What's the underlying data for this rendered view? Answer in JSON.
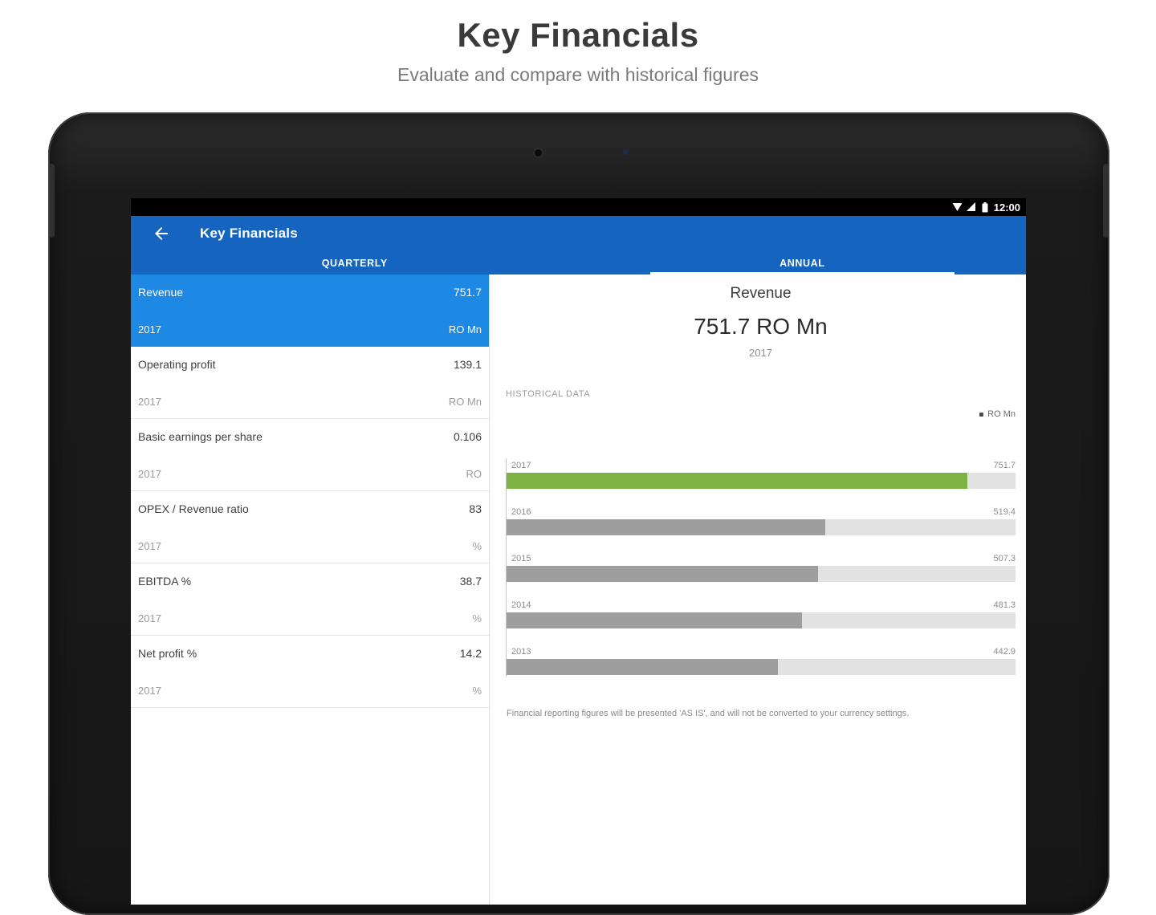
{
  "page": {
    "title": "Key Financials",
    "subtitle": "Evaluate and compare with historical figures"
  },
  "statusbar": {
    "time": "12:00"
  },
  "appbar": {
    "title": "Key Financials",
    "back_icon": "arrow-left"
  },
  "tabs": [
    {
      "label": "QUARTERLY",
      "selected": false
    },
    {
      "label": "ANNUAL",
      "selected": true
    }
  ],
  "metrics": [
    {
      "label": "Revenue",
      "value": "751.7",
      "year": "2017",
      "unit": "RO Mn",
      "selected": true
    },
    {
      "label": "Operating profit",
      "value": "139.1",
      "year": "2017",
      "unit": "RO Mn",
      "selected": false
    },
    {
      "label": "Basic earnings per share",
      "value": "0.106",
      "year": "2017",
      "unit": "RO",
      "selected": false
    },
    {
      "label": "OPEX / Revenue ratio",
      "value": "83",
      "year": "2017",
      "unit": "%",
      "selected": false
    },
    {
      "label": "EBITDA %",
      "value": "38.7",
      "year": "2017",
      "unit": "%",
      "selected": false
    },
    {
      "label": "Net profit %",
      "value": "14.2",
      "year": "2017",
      "unit": "%",
      "selected": false
    }
  ],
  "detail": {
    "title": "Revenue",
    "value": "751.7 RO Mn",
    "year": "2017",
    "section_label": "HISTORICAL DATA",
    "legend": "RO Mn",
    "footnote": "Financial reporting figures will be presented 'AS IS', and will not be converted to your currency settings."
  },
  "chart_data": {
    "type": "bar",
    "orientation": "horizontal",
    "title": "Revenue",
    "unit": "RO Mn",
    "categories": [
      "2017",
      "2016",
      "2015",
      "2014",
      "2013"
    ],
    "values": [
      751.7,
      519.4,
      507.3,
      481.3,
      442.9
    ],
    "value_labels": [
      "751.7",
      "519.4",
      "507.3",
      "481.3",
      "442.9"
    ],
    "xmax": 830,
    "highlight_index": 0,
    "grid": false,
    "legend_position": "top-right"
  },
  "colors": {
    "appbar_blue": "#1565C0",
    "selected_blue": "#1E88E5",
    "bar_highlight": "#7CB342",
    "bar_default": "#9E9E9E",
    "bar_track": "#E2E2E2"
  }
}
